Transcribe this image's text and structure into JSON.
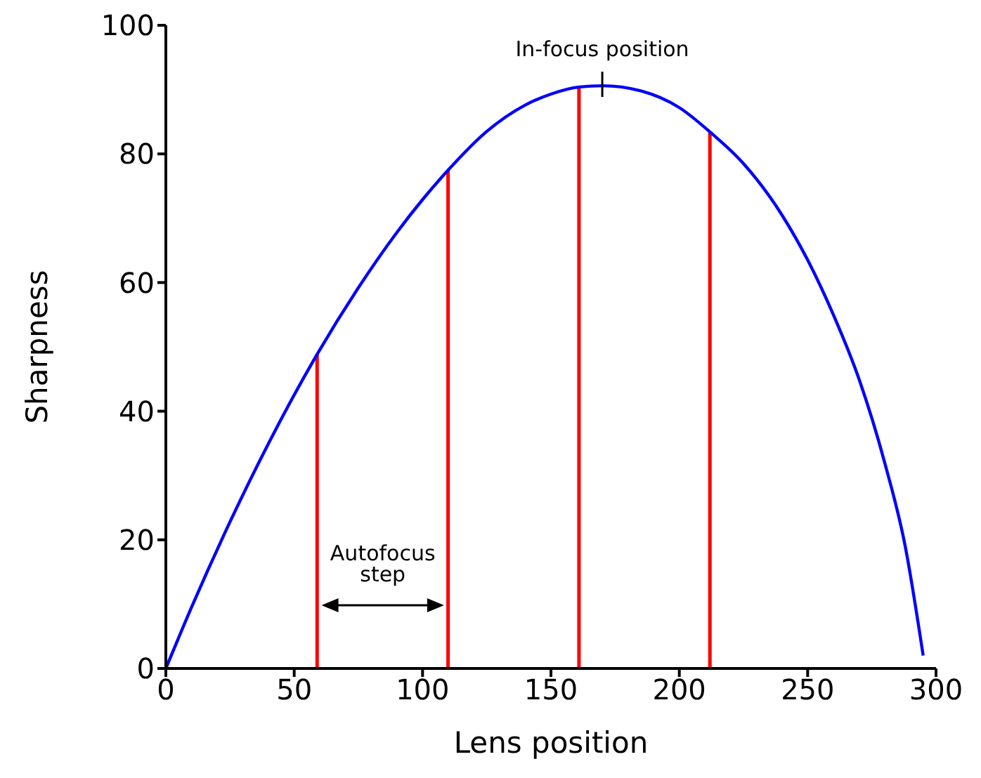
{
  "chart_data": {
    "type": "line",
    "xlabel": "Lens position",
    "ylabel": "Sharpness",
    "xlim": [
      0,
      300
    ],
    "xticks": [
      0,
      50,
      100,
      150,
      200,
      250,
      300
    ],
    "ylim": [
      0,
      100
    ],
    "yticks": [
      0,
      20,
      40,
      60,
      80,
      100
    ],
    "grid": false,
    "legend": false,
    "marker": "none",
    "line_style": "solid",
    "series": [
      {
        "color": "#0000ff",
        "x": [
          0,
          10,
          25,
          40,
          59,
          75,
          90,
          100,
          110,
          125,
          140,
          150,
          161,
          170,
          185,
          200,
          212,
          225,
          240,
          250,
          260,
          270,
          280,
          288,
          295
        ],
        "values": [
          0,
          9.5,
          22.8,
          35,
          48.9,
          59.2,
          67.8,
          72.9,
          77.5,
          83.5,
          87.6,
          89.3,
          90.4,
          90.6,
          89.8,
          87.2,
          83.4,
          78.5,
          70.5,
          63.5,
          55,
          45,
          32,
          19,
          2
        ]
      },
      {
        "type": "bar",
        "color": "#ff0000",
        "x": [
          59,
          110,
          161,
          212
        ],
        "values": [
          48.9,
          77.5,
          90.4,
          83.4
        ]
      }
    ],
    "annotations": [
      {
        "text": "In-focus position",
        "x": 170,
        "y": 90.6
      },
      "Autofocus step"
    ]
  }
}
